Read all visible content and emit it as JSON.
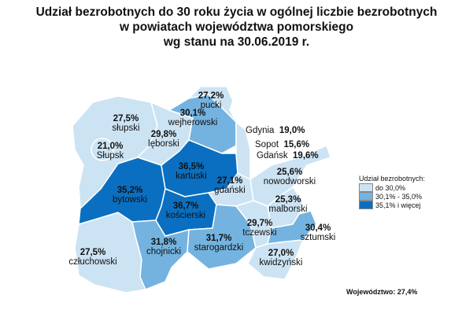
{
  "title": {
    "line1": "Udział bezrobotnych do 30 roku życia w ogólnej liczbie bezrobotnych",
    "line2": "w powiatach województwa pomorskiego",
    "line3": "wg stanu na 30.06.2019 r."
  },
  "colors": {
    "low": "#cce3f3",
    "mid": "#74b3e0",
    "high": "#0a6fc0",
    "border": "#ffffff"
  },
  "regions": [
    {
      "id": "pucki",
      "name": "pucki",
      "value": "27,2%",
      "class": "low"
    },
    {
      "id": "wejherowski",
      "name": "wejherowski",
      "value": "30,1%",
      "class": "mid"
    },
    {
      "id": "slupski",
      "name": "słupski",
      "value": "27,5%",
      "class": "low"
    },
    {
      "id": "leborski",
      "name": "lęborski",
      "value": "29,8%",
      "class": "low"
    },
    {
      "id": "slupsk",
      "name": "Słupsk",
      "value": "21,0%",
      "class": "low"
    },
    {
      "id": "kartuski",
      "name": "kartuski",
      "value": "36,5%",
      "class": "high"
    },
    {
      "id": "bytowski",
      "name": "bytowski",
      "value": "35,2%",
      "class": "high"
    },
    {
      "id": "koscierski",
      "name": "kościerski",
      "value": "36,7%",
      "class": "high"
    },
    {
      "id": "gdanski",
      "name": "gdański",
      "value": "27,1%",
      "class": "low"
    },
    {
      "id": "nowodworski",
      "name": "nowodworski",
      "value": "25,6%",
      "class": "low"
    },
    {
      "id": "malborski",
      "name": "malborski",
      "value": "25,3%",
      "class": "low"
    },
    {
      "id": "tczewski",
      "name": "tczewski",
      "value": "29,7%",
      "class": "low"
    },
    {
      "id": "sztumski",
      "name": "sztumski",
      "value": "30,4%",
      "class": "mid"
    },
    {
      "id": "czluchowski",
      "name": "człuchowski",
      "value": "27,5%",
      "class": "low"
    },
    {
      "id": "chojnicki",
      "name": "chojnicki",
      "value": "31,8%",
      "class": "mid"
    },
    {
      "id": "starogardzki",
      "name": "starogardzki",
      "value": "31,7%",
      "class": "mid"
    },
    {
      "id": "kwidzynski",
      "name": "kwidzyński",
      "value": "27,0%",
      "class": "low"
    }
  ],
  "cities": [
    {
      "name": "Gdynia",
      "value": "19,0%"
    },
    {
      "name": "Sopot",
      "value": "15,6%"
    },
    {
      "name": "Gdańsk",
      "value": "19,6%"
    }
  ],
  "legend": {
    "title": "Udział bezrobotnych:",
    "items": [
      {
        "label": "do 30,0%",
        "color": "#cce3f3"
      },
      {
        "label": "30,1% - 35,0%",
        "color": "#74b3e0"
      },
      {
        "label": "35,1% i więcej",
        "color": "#0a6fc0"
      }
    ]
  },
  "total": "Województwo: 27,4%"
}
